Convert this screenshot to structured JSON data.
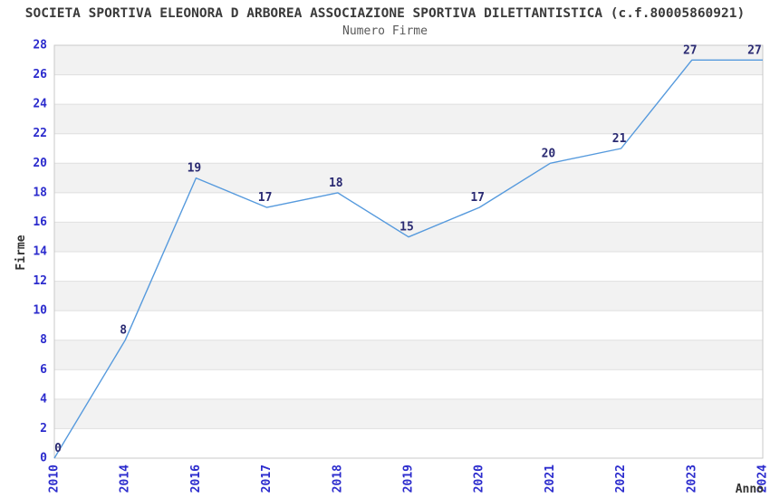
{
  "header": {
    "title": "SOCIETA SPORTIVA ELEONORA D ARBOREA ASSOCIAZIONE SPORTIVA DILETTANTISTICA (c.f.80005860921)",
    "subtitle": "Numero Firme"
  },
  "chart_data": {
    "type": "line",
    "title": "SOCIETA SPORTIVA ELEONORA D ARBOREA ASSOCIAZIONE SPORTIVA DILETTANTISTICA (c.f.80005860921)",
    "subtitle": "Numero Firme",
    "xlabel": "Anno",
    "ylabel": "Firme",
    "categories": [
      "2010",
      "2014",
      "2016",
      "2017",
      "2018",
      "2019",
      "2020",
      "2021",
      "2022",
      "2023",
      "2024"
    ],
    "values": [
      0,
      8,
      19,
      17,
      18,
      15,
      17,
      20,
      21,
      27,
      27
    ],
    "ylim": [
      0,
      28
    ],
    "ytick_step": 2,
    "grid": "horizontal-bands",
    "legend": "none",
    "show_data_labels": true,
    "markers": "none"
  },
  "colors": {
    "line": "#569add",
    "tick_label": "#2b2bcd",
    "data_label": "#2a2a72",
    "band": "#f2f2f2",
    "gridline": "#dfdfdf",
    "plot_border": "#c8c8c8",
    "title": "#3a3a3a",
    "subtitle": "#595959",
    "axis_title": "#333333"
  }
}
